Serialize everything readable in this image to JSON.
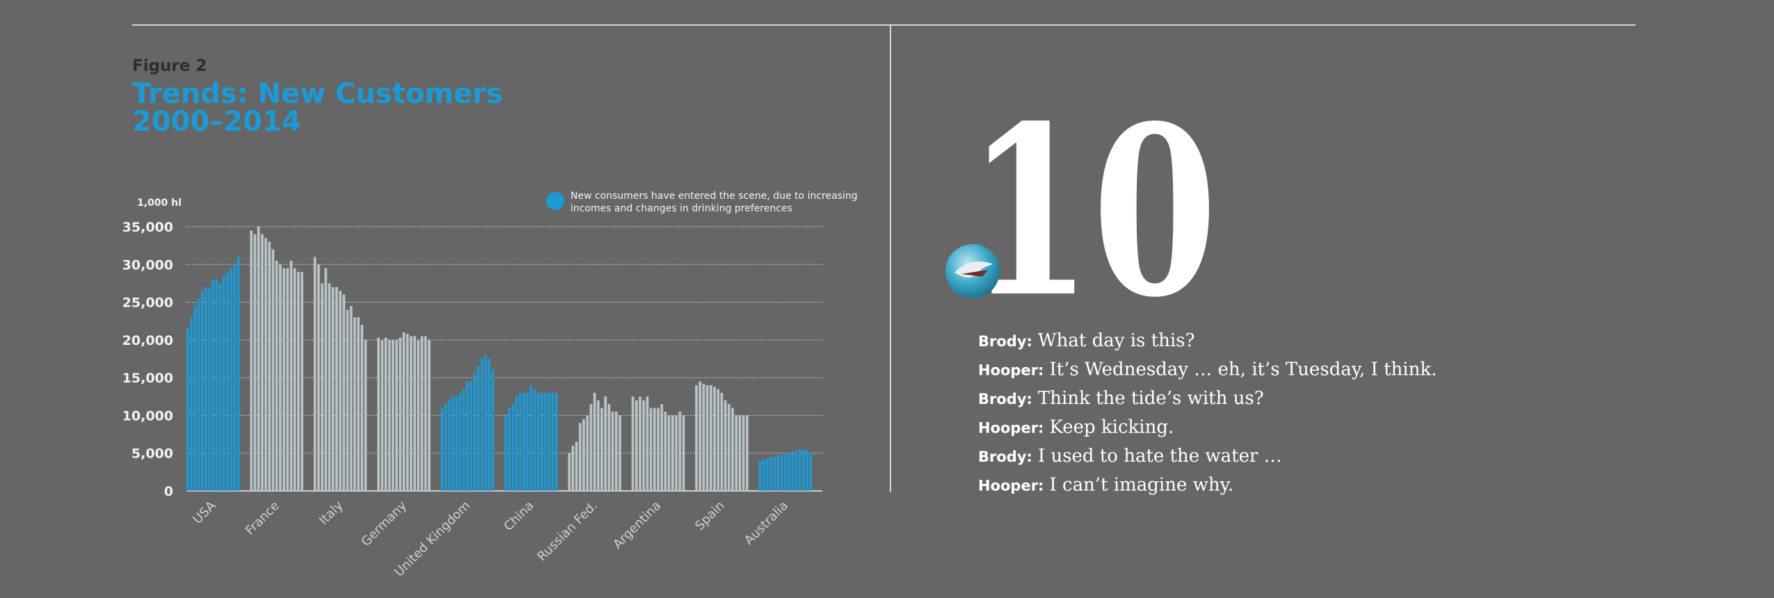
{
  "figure_label": "Figure 2",
  "chart_data": {
    "type": "grouped-bar",
    "title_lines": [
      "Trends: New Customers",
      "2000–2014"
    ],
    "y_unit": "1,000 hl",
    "legend": {
      "text_lines": [
        "New consumers have entered the scene, due to increasing",
        "incomes and changes in drinking preferences"
      ],
      "color": "#1b9ad6"
    },
    "ylim": [
      0,
      35000
    ],
    "yticks": [
      0,
      {
        "value": 5000,
        "label": "5,000"
      },
      {
        "value": 10000,
        "label": "10,000"
      },
      {
        "value": 15000,
        "label": "15,000"
      },
      {
        "value": 20000,
        "label": "20,000"
      },
      {
        "value": 25000,
        "label": "25,000"
      },
      {
        "value": 30000,
        "label": "30,000"
      },
      {
        "value": 35000,
        "label": "35,000"
      }
    ],
    "grid": true,
    "groups": [
      {
        "name": "USA",
        "color": "#1b9ad6",
        "values": [
          21500,
          23000,
          24500,
          25500,
          26500,
          27000,
          27000,
          28000,
          28000,
          27500,
          28500,
          29000,
          29500,
          30000,
          31000
        ]
      },
      {
        "name": "France",
        "color": "#b9c3c8",
        "values": [
          34500,
          34000,
          35000,
          34000,
          33500,
          33000,
          32000,
          30500,
          30000,
          29500,
          29500,
          30500,
          29500,
          29000,
          29000
        ]
      },
      {
        "name": "Italy",
        "color": "#b9c3c8",
        "values": [
          31000,
          30000,
          27500,
          29500,
          27500,
          27000,
          27000,
          26500,
          26000,
          24000,
          24500,
          23000,
          23000,
          22000,
          20000
        ]
      },
      {
        "name": "Germany",
        "color": "#b9c3c8",
        "values": [
          20300,
          20000,
          20300,
          20000,
          20000,
          20000,
          20300,
          21000,
          20800,
          20500,
          20500,
          20000,
          20500,
          20500,
          20000
        ]
      },
      {
        "name": "United Kingdom",
        "color": "#1b9ad6",
        "values": [
          11000,
          11500,
          12000,
          12500,
          12500,
          13000,
          13500,
          14500,
          14500,
          15500,
          16500,
          17500,
          18000,
          17500,
          16000
        ]
      },
      {
        "name": "China",
        "color": "#1b9ad6",
        "values": [
          10000,
          11000,
          11500,
          12500,
          13000,
          13000,
          13000,
          14000,
          13500,
          13000,
          13000,
          13000,
          13000,
          13000,
          13000
        ]
      },
      {
        "name": "Russian Fed.",
        "color": "#b9c3c8",
        "values": [
          5000,
          6000,
          6500,
          9000,
          9500,
          10000,
          11500,
          13000,
          12000,
          11000,
          12500,
          11500,
          10500,
          10500,
          10000
        ]
      },
      {
        "name": "Argentina",
        "color": "#b9c3c8",
        "values": [
          12500,
          12000,
          12500,
          12000,
          12500,
          11000,
          11000,
          11000,
          11500,
          10500,
          10000,
          10000,
          10000,
          10500,
          10000
        ]
      },
      {
        "name": "Spain",
        "color": "#b9c3c8",
        "values": [
          14000,
          14500,
          14200,
          14000,
          14000,
          13800,
          13500,
          13000,
          12000,
          11500,
          11000,
          10000,
          10000,
          10000,
          10000
        ]
      },
      {
        "name": "Australia",
        "color": "#1b9ad6",
        "values": [
          4000,
          4200,
          4300,
          4500,
          4500,
          4700,
          4800,
          5000,
          5000,
          5200,
          5300,
          5500,
          5500,
          5500,
          5000
        ]
      }
    ]
  },
  "big_number": "10",
  "dialogue": [
    {
      "speaker": "Brody:",
      "line": "What day is this?"
    },
    {
      "speaker": "Hooper:",
      "line": "It’s Wednesday … eh, it’s Tuesday, I think."
    },
    {
      "speaker": "Brody:",
      "line": "Think the tide’s with us?"
    },
    {
      "speaker": "Hooper:",
      "line": "Keep kicking."
    },
    {
      "speaker": "Brody:",
      "line": "I used to hate the water …"
    },
    {
      "speaker": "Hooper:",
      "line": "I can’t imagine why."
    }
  ]
}
